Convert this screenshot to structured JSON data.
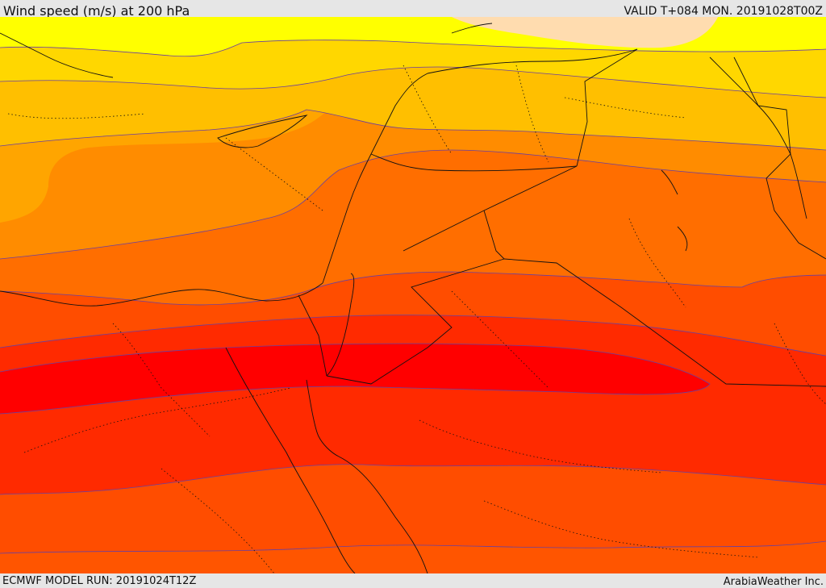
{
  "header": {
    "title": "Wind speed (m/s) at 200 hPa",
    "valid": "VALID T+084 MON. 20191028T00Z"
  },
  "footer": {
    "model_run": "ECMWF MODEL RUN: 20191024T12Z",
    "credit": "ArabiaWeather Inc."
  },
  "map": {
    "field": "wind-speed",
    "palette": [
      "#ffdcaf",
      "#ffff00",
      "#ffd700",
      "#ffbf00",
      "#ffa500",
      "#ff8c00",
      "#ff6e00",
      "#ff4d00",
      "#ff2a00",
      "#ff0000"
    ],
    "contour_color": "#6a3fa0",
    "border_color": "#111111"
  }
}
